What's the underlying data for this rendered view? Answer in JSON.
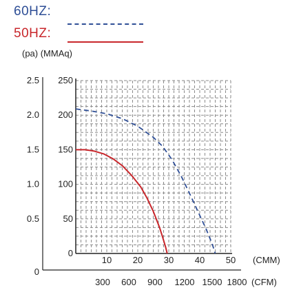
{
  "legend": {
    "hz60_label": "60HZ:",
    "hz50_label": "50HZ:"
  },
  "units_label": "(pa) (MMAq)",
  "colors": {
    "hz60": "#2e4e96",
    "hz50": "#c8262b",
    "grid": "#8a8a8a",
    "axis": "#222222"
  },
  "chart_data": {
    "type": "line",
    "title": "",
    "x_primary": {
      "label": "(CMM)",
      "ticks": [
        10,
        20,
        30,
        40,
        50
      ],
      "range": [
        0,
        50
      ]
    },
    "x_secondary": {
      "label": "(CFM)",
      "ticks": [
        300,
        600,
        900,
        1200,
        1500,
        1800
      ]
    },
    "y_primary": {
      "ticks": [
        0,
        50,
        100,
        150,
        200,
        250
      ],
      "range": [
        0,
        250
      ]
    },
    "y_secondary": {
      "ticks": [
        0,
        0.5,
        1.0,
        1.5,
        2.0,
        2.5
      ],
      "tick_labels": [
        "0",
        "0.5",
        "1.0",
        "1.5",
        "2.0",
        "2.5"
      ]
    },
    "grid": true,
    "series": [
      {
        "name": "60HZ",
        "style": "dashed",
        "x": [
          0,
          5,
          10,
          15,
          20,
          25,
          28,
          31,
          34,
          37,
          40,
          42,
          44,
          45
        ],
        "y": [
          209,
          206,
          202,
          195,
          184,
          168,
          155,
          136,
          112,
          84,
          55,
          36,
          14,
          0
        ]
      },
      {
        "name": "50HZ",
        "style": "solid",
        "x": [
          0,
          3,
          6,
          9,
          12,
          15,
          18,
          21,
          23,
          25,
          27,
          28,
          29,
          29.5
        ],
        "y": [
          150,
          150,
          148,
          144,
          137,
          127,
          113,
          96,
          80,
          61,
          38,
          24,
          9,
          0
        ]
      }
    ]
  }
}
